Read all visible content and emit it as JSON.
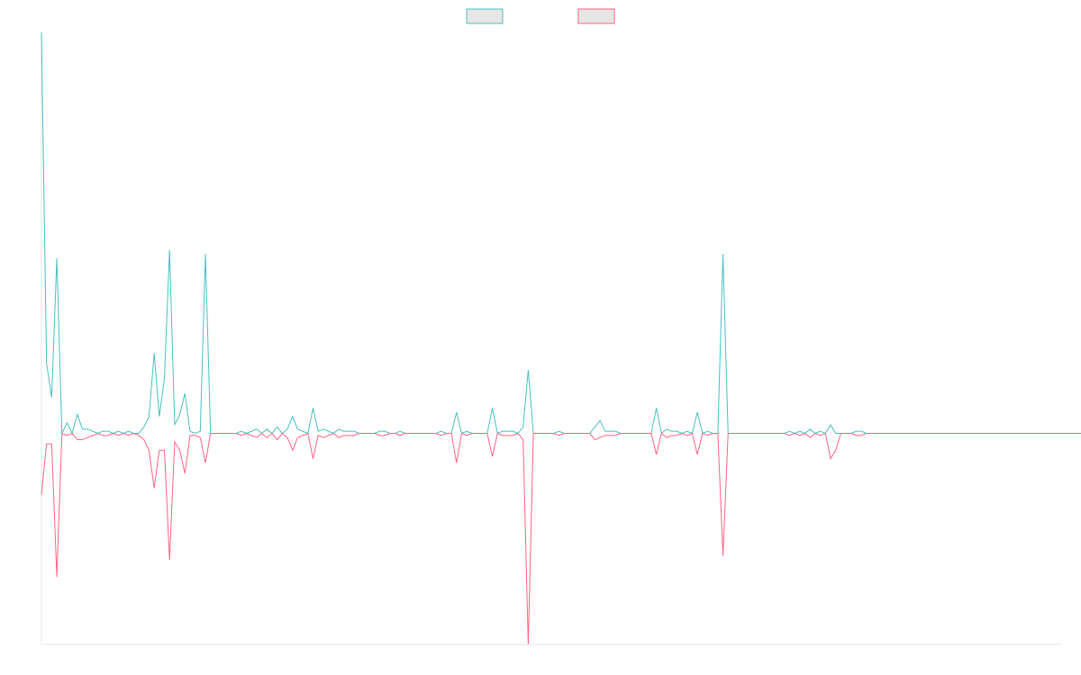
{
  "chart_data": {
    "type": "line",
    "title": "",
    "xlabel": "",
    "ylabel": "",
    "grid": false,
    "legend": {
      "position": "top-center",
      "swatch_fill": "#e6e6e6"
    },
    "x_range": [
      0,
      199
    ],
    "ylim": [
      -100,
      190
    ],
    "series": [
      {
        "color": "#4bc0c0",
        "values": [
          190,
          33,
          17,
          83,
          0,
          5,
          0,
          9,
          2,
          2,
          1,
          0,
          1,
          1,
          0,
          1,
          0,
          1,
          0,
          0,
          3,
          8,
          38,
          8,
          26,
          87,
          4,
          9,
          19,
          1,
          0,
          1,
          85,
          0,
          0,
          0,
          0,
          0,
          0,
          1,
          0,
          1,
          2,
          0,
          2,
          0,
          3,
          0,
          2,
          8,
          2,
          1,
          0,
          12,
          1,
          2,
          1,
          0,
          2,
          1,
          1,
          1,
          0,
          0,
          0,
          0,
          1,
          1,
          0,
          0,
          1,
          0,
          0,
          0,
          0,
          0,
          0,
          0,
          1,
          0,
          0,
          10,
          0,
          1,
          0,
          0,
          0,
          0,
          12,
          0,
          1,
          1,
          1,
          0,
          3,
          30,
          0,
          0,
          0,
          0,
          0,
          1,
          0,
          0,
          0,
          0,
          0,
          0,
          3,
          6,
          1,
          1,
          1,
          0,
          0,
          0,
          0,
          0,
          0,
          0,
          12,
          0,
          2,
          1,
          1,
          0,
          1,
          0,
          10,
          0,
          1,
          0,
          0,
          85,
          0,
          0,
          0,
          0,
          0,
          0,
          0,
          0,
          0,
          0,
          0,
          0,
          1,
          0,
          1,
          0,
          2,
          0,
          1,
          0,
          4,
          0,
          0,
          0,
          0,
          1,
          1,
          0,
          0,
          0,
          0,
          0,
          0,
          0,
          0,
          0,
          0,
          0,
          0,
          0,
          0,
          0,
          0,
          0,
          0,
          0,
          0,
          0,
          0,
          0,
          0,
          0,
          0,
          0,
          0,
          0,
          0,
          0,
          0,
          0,
          0,
          0,
          0,
          0,
          0,
          0,
          0,
          0,
          0,
          0
        ]
      },
      {
        "color": "#ff6384",
        "values": [
          -29,
          -5,
          -5,
          -68,
          0,
          -1,
          0,
          -3,
          -3,
          -2,
          -1,
          0,
          -1,
          -1,
          0,
          -1,
          0,
          -1,
          0,
          -1,
          -3,
          -8,
          -26,
          -8,
          -8,
          -60,
          -4,
          -8,
          -19,
          -1,
          -1,
          -2,
          -14,
          0,
          0,
          0,
          0,
          0,
          0,
          -1,
          0,
          -1,
          -2,
          0,
          -2,
          0,
          -3,
          0,
          -2,
          -8,
          -2,
          -1,
          0,
          -12,
          -1,
          -2,
          -1,
          0,
          -2,
          -1,
          -1,
          -1,
          0,
          0,
          0,
          0,
          -1,
          -1,
          0,
          0,
          -1,
          0,
          0,
          0,
          0,
          0,
          0,
          0,
          -1,
          0,
          0,
          -14,
          0,
          -1,
          0,
          0,
          0,
          0,
          -11,
          0,
          -1,
          -1,
          -1,
          0,
          -3,
          -100,
          0,
          0,
          0,
          0,
          0,
          -1,
          0,
          0,
          0,
          0,
          0,
          0,
          -3,
          -2,
          -1,
          -1,
          -1,
          0,
          0,
          0,
          0,
          0,
          0,
          0,
          -10,
          0,
          -2,
          -1,
          -1,
          0,
          -1,
          0,
          -10,
          0,
          -1,
          0,
          0,
          -58,
          0,
          0,
          0,
          0,
          0,
          0,
          0,
          0,
          0,
          0,
          0,
          0,
          -1,
          0,
          -1,
          0,
          -2,
          0,
          -1,
          0,
          -12,
          -8,
          0,
          0,
          0,
          -1,
          -1,
          0,
          0,
          0,
          0,
          0,
          0,
          0,
          0,
          0,
          0,
          0,
          0,
          0,
          0,
          0,
          0,
          0,
          0,
          0,
          0,
          0,
          0,
          0,
          0,
          0,
          0,
          0,
          0,
          0,
          0,
          0,
          0,
          0,
          0,
          0,
          0,
          0,
          0,
          0,
          0,
          0,
          0,
          0
        ]
      }
    ]
  }
}
